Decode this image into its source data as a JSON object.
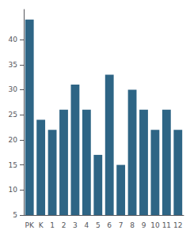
{
  "chart_data": {
    "type": "bar",
    "categories": [
      "PK",
      "K",
      "1",
      "2",
      "3",
      "4",
      "5",
      "6",
      "7",
      "8",
      "9",
      "10",
      "11",
      "12"
    ],
    "values": [
      44,
      24,
      22,
      26,
      31,
      26,
      17,
      33,
      15,
      30,
      26,
      22,
      26,
      22
    ],
    "color": "#2e6585",
    "ylim": [
      5,
      46
    ],
    "yticks": [
      5,
      10,
      15,
      20,
      25,
      30,
      35,
      40
    ],
    "grid": false
  }
}
